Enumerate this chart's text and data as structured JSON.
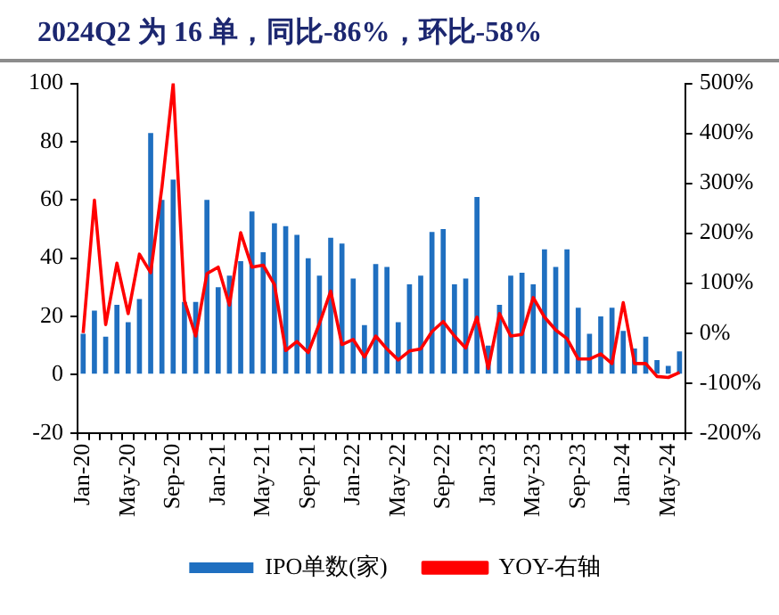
{
  "chart_data": {
    "type": "bar",
    "title": "2024Q2 为 16 单，同比-86%，环比-58%",
    "categories": [
      "Jan-20",
      null,
      null,
      null,
      "May-20",
      null,
      null,
      null,
      "Sep-20",
      null,
      null,
      null,
      "Jan-21",
      null,
      null,
      null,
      "May-21",
      null,
      null,
      null,
      "Sep-21",
      null,
      null,
      null,
      "Jan-22",
      null,
      null,
      null,
      "May-22",
      null,
      null,
      null,
      "Sep-22",
      null,
      null,
      null,
      "Jan-23",
      null,
      null,
      null,
      "May-23",
      null,
      null,
      null,
      "Sep-23",
      null,
      null,
      null,
      "Jan-24",
      null,
      null,
      null,
      "May-24",
      null
    ],
    "series": [
      {
        "name": "IPO单数(家)",
        "color": "#1f6fc0",
        "values": [
          14,
          22,
          13,
          24,
          18,
          26,
          83,
          60,
          67,
          25,
          25,
          60,
          30,
          34,
          39,
          56,
          42,
          52,
          51,
          48,
          40,
          34,
          47,
          45,
          33,
          17,
          38,
          37,
          18,
          31,
          34,
          49,
          50,
          31,
          33,
          61,
          10,
          24,
          34,
          35,
          31,
          43,
          37,
          43,
          23,
          14,
          20,
          23,
          15,
          9,
          13,
          5,
          3,
          8
        ]
      },
      {
        "name": "YOY-右轴",
        "color": "#ff0000",
        "type": "line",
        "axis": "y2",
        "values": [
          0,
          266,
          17,
          140,
          39,
          158,
          121,
          292,
          499,
          65,
          -6,
          119,
          132,
          56,
          201,
          132,
          136,
          97,
          -35,
          -17,
          -39,
          19,
          84,
          -23,
          -13,
          -48,
          -6,
          -32,
          -54,
          -36,
          -32,
          3,
          23,
          -6,
          -30,
          32,
          -71,
          39,
          -6,
          -3,
          71,
          32,
          6,
          -11,
          -52,
          -52,
          -42,
          -61,
          61,
          -61,
          -61,
          -87,
          -89,
          -79
        ]
      }
    ],
    "ylim": [
      -20,
      100
    ],
    "yticks": [
      -20,
      0,
      20,
      40,
      60,
      80,
      100
    ],
    "y2lim": [
      -200,
      500
    ],
    "y2ticks": [
      {
        "value": -200,
        "label": "-200%"
      },
      {
        "value": -100,
        "label": "-100%"
      },
      {
        "value": 0,
        "label": "0%"
      },
      {
        "value": 100,
        "label": "100%"
      },
      {
        "value": 200,
        "label": "200%"
      },
      {
        "value": 300,
        "label": "300%"
      },
      {
        "value": 400,
        "label": "400%"
      },
      {
        "value": 500,
        "label": "500%"
      }
    ],
    "grid": false,
    "legend": "bottom",
    "marker": "none",
    "line_style": "solid"
  }
}
